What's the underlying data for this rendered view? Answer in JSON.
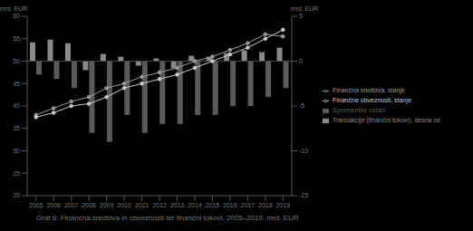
{
  "chart_data": {
    "type": "bar",
    "title": "Graf 6: Finančna sredstva in obveznosti ter finančni tokovi, 2005–2019, mrd. EUR",
    "ylabel": "mrd. EUR",
    "y2label": "mrd. EUR",
    "categories": [
      "2005",
      "2006",
      "2007",
      "2008",
      "2009",
      "2010",
      "2011",
      "2012",
      "2013",
      "2014",
      "2015",
      "2016",
      "2017",
      "2018",
      "2019"
    ],
    "ylim": [
      20,
      60
    ],
    "yticks": [
      20,
      25,
      30,
      35,
      40,
      45,
      50,
      55,
      60
    ],
    "y2lim": [
      -15,
      5
    ],
    "y2ticks": [
      -15,
      -10,
      -5,
      0,
      5
    ],
    "grid": false,
    "legend": "right",
    "series": [
      {
        "name": "Transakcije (finančni tokovi), desna os",
        "type": "bar",
        "axis": "y2",
        "color": "#8a8a8a",
        "values": [
          2.1,
          2.4,
          2.0,
          -1.0,
          0.8,
          0.5,
          -0.5,
          0.3,
          -0.8,
          0.6,
          0.5,
          0.9,
          1.2,
          1.0,
          1.5
        ]
      },
      {
        "name": "Spremembe ostalo",
        "type": "bar",
        "axis": "y2",
        "color": "#5a5a5a",
        "values": [
          -1.5,
          -2,
          -3,
          -8,
          -9,
          -6,
          -8,
          -7,
          -7,
          -6,
          -6,
          -5,
          -5,
          -4,
          -3
        ]
      },
      {
        "name": "Finančna sredstva, stanje",
        "type": "line",
        "axis": "y",
        "color": "#9a9a9a",
        "marker": "circle",
        "values": [
          38,
          39.5,
          41,
          42,
          44,
          45,
          46.5,
          47.5,
          48.5,
          50,
          51,
          52.5,
          54,
          56,
          55.5
        ]
      },
      {
        "name": "Finančne obveznosti, stanje",
        "type": "line",
        "axis": "y",
        "color": "#c8c8c8",
        "marker": "circle",
        "values": [
          37.5,
          38.5,
          40,
          40.5,
          42,
          44,
          45,
          46,
          47,
          48.5,
          50,
          51.5,
          53,
          55,
          57
        ]
      }
    ]
  }
}
